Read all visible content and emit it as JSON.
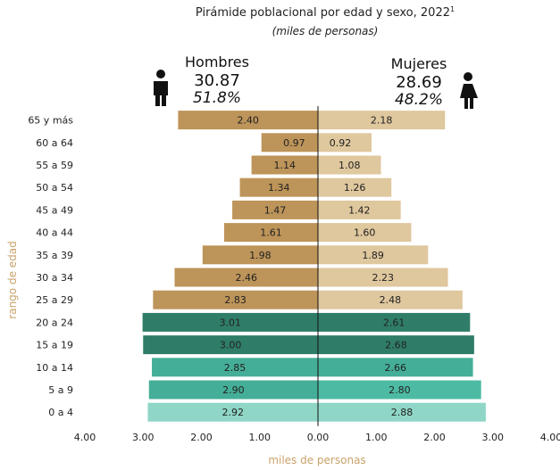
{
  "chart_data": {
    "type": "bar",
    "orientation": "horizontal-pyramid",
    "title": "Pirámide poblacional por edad y sexo, 2022",
    "title_superscript": "1",
    "subtitle": "(miles de personas)",
    "xlabel": "miles de personas",
    "ylabel": "rango de edad",
    "xlim": [
      -4,
      4
    ],
    "xticks": [
      "4.00",
      "3.00",
      "2.00",
      "1.00",
      "0.00",
      "1.00",
      "2.00",
      "3.00",
      "4.00"
    ],
    "categories": [
      "65 y más",
      "60 a 64",
      "55 a 59",
      "50 a 54",
      "45 a 49",
      "40 a 44",
      "35 a 39",
      "30 a 34",
      "25 a 29",
      "20 a 24",
      "15 a 19",
      "10 a 14",
      "5 a 9",
      "0 a 4"
    ],
    "series": [
      {
        "name": "Hombres",
        "total": "30.87",
        "share": "51.8%",
        "values": [
          2.4,
          0.97,
          1.14,
          1.34,
          1.47,
          1.61,
          1.98,
          2.46,
          2.83,
          3.01,
          3.0,
          2.85,
          2.9,
          2.92
        ],
        "labels": [
          "2.40",
          "0.97",
          "1.14",
          "1.34",
          "1.47",
          "1.61",
          "1.98",
          "2.46",
          "2.83",
          "3.01",
          "3.00",
          "2.85",
          "2.90",
          "2.92"
        ],
        "colors": [
          "#bd9459",
          "#bd9459",
          "#bd9459",
          "#bd9459",
          "#bd9459",
          "#bd9459",
          "#bd9459",
          "#bd9459",
          "#bd9459",
          "#2f7d68",
          "#2f7d68",
          "#45ae98",
          "#45ae98",
          "#8fd6c7"
        ]
      },
      {
        "name": "Mujeres",
        "total": "28.69",
        "share": "48.2%",
        "values": [
          2.18,
          0.92,
          1.08,
          1.26,
          1.42,
          1.6,
          1.89,
          2.23,
          2.48,
          2.61,
          2.68,
          2.66,
          2.8,
          2.88
        ],
        "labels": [
          "2.18",
          "0.92",
          "1.08",
          "1.26",
          "1.42",
          "1.60",
          "1.89",
          "2.23",
          "2.48",
          "2.61",
          "2.68",
          "2.66",
          "2.80",
          "2.88"
        ],
        "colors": [
          "#dfc79e",
          "#dfc79e",
          "#dfc79e",
          "#dfc79e",
          "#dfc79e",
          "#dfc79e",
          "#dfc79e",
          "#dfc79e",
          "#dfc79e",
          "#2f7d68",
          "#2f7d68",
          "#45ae98",
          "#4dbba3",
          "#8fd6c7"
        ]
      }
    ],
    "colors": {
      "axis_label": "#c8a26a",
      "icon": "#111111",
      "center_line": "#111111"
    },
    "icons": [
      "male-figure-icon",
      "female-figure-icon"
    ]
  }
}
